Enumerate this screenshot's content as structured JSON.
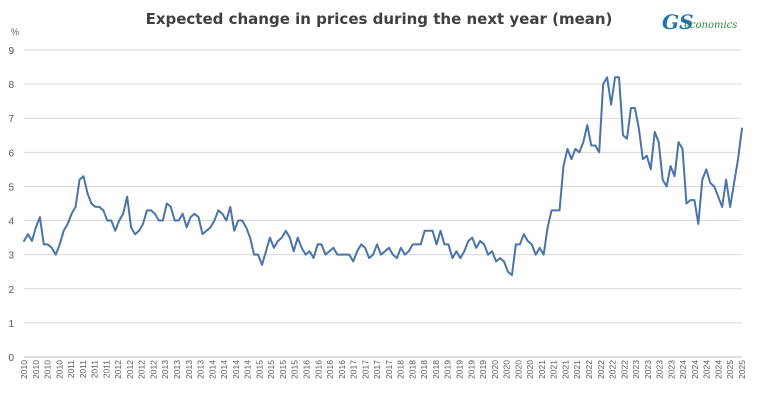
{
  "chart_data": {
    "type": "line",
    "title": "Expected change in prices during the next year (mean)",
    "ylabel": "%",
    "xlabel": "",
    "ylim": [
      0,
      9
    ],
    "yticks": [
      0,
      1,
      2,
      3,
      4,
      5,
      6,
      7,
      8,
      9
    ],
    "xticks": [
      "2010",
      "2010",
      "2010",
      "2010",
      "2011",
      "2011",
      "2011",
      "2011",
      "2012",
      "2012",
      "2012",
      "2012",
      "2013",
      "2013",
      "2013",
      "2013",
      "2014",
      "2014",
      "2014",
      "2014",
      "2015",
      "2015",
      "2015",
      "2015",
      "2016",
      "2016",
      "2016",
      "2016",
      "2017",
      "2017",
      "2017",
      "2017",
      "2018",
      "2018",
      "2018",
      "2018",
      "2019",
      "2019",
      "2019",
      "2019",
      "2020",
      "2020",
      "2020",
      "2020",
      "2021",
      "2021",
      "2021",
      "2021",
      "2022",
      "2022",
      "2022",
      "2022",
      "2023",
      "2023",
      "2023",
      "2023",
      "2024",
      "2024",
      "2024",
      "2024",
      "2025",
      "2025"
    ],
    "grid": "horizontal",
    "color": "#4a74a8",
    "series": [
      {
        "values": [
          3.4,
          3.6,
          3.4,
          3.8,
          4.1,
          3.3,
          3.3,
          3.2,
          3.0,
          3.3,
          3.7,
          3.9,
          4.2,
          4.4,
          5.2,
          5.3,
          4.8,
          4.5,
          4.4,
          4.4,
          4.3,
          4.0,
          4.0,
          3.7,
          4.0,
          4.2,
          4.7,
          3.8,
          3.6,
          3.7,
          3.9,
          4.3,
          4.3,
          4.2,
          4.0,
          4.0,
          4.5,
          4.4,
          4.0,
          4.0,
          4.2,
          3.8,
          4.1,
          4.2,
          4.1,
          3.6,
          3.7,
          3.8,
          4.0,
          4.3,
          4.2,
          4.0,
          4.4,
          3.7,
          4.0,
          4.0,
          3.8,
          3.5,
          3.0,
          3.0,
          2.7,
          3.1,
          3.5,
          3.2,
          3.4,
          3.5,
          3.7,
          3.5,
          3.1,
          3.5,
          3.2,
          3.0,
          3.1,
          2.9,
          3.3,
          3.3,
          3.0,
          3.1,
          3.2,
          3.0,
          3.0,
          3.0,
          3.0,
          2.8,
          3.1,
          3.3,
          3.2,
          2.9,
          3.0,
          3.3,
          3.0,
          3.1,
          3.2,
          3.0,
          2.9,
          3.2,
          3.0,
          3.1,
          3.3,
          3.3,
          3.3,
          3.7,
          3.7,
          3.7,
          3.3,
          3.7,
          3.3,
          3.3,
          2.9,
          3.1,
          2.9,
          3.1,
          3.4,
          3.5,
          3.2,
          3.4,
          3.3,
          3.0,
          3.1,
          2.8,
          2.9,
          2.8,
          2.5,
          2.4,
          3.3,
          3.3,
          3.6,
          3.4,
          3.3,
          3.0,
          3.2,
          3.0,
          3.8,
          4.3,
          4.3,
          4.3,
          5.6,
          6.1,
          5.8,
          6.1,
          6.0,
          6.3,
          6.8,
          6.2,
          6.2,
          6.0,
          8.0,
          8.2,
          7.4,
          8.2,
          8.2,
          6.5,
          6.4,
          7.3,
          7.3,
          6.7,
          5.8,
          5.9,
          5.5,
          6.6,
          6.3,
          5.2,
          5.0,
          5.6,
          5.3,
          6.3,
          6.1,
          4.5,
          4.6,
          4.6,
          3.9,
          5.2,
          5.5,
          5.1,
          5.0,
          4.7,
          4.4,
          5.2,
          4.4,
          5.1,
          5.8,
          6.7
        ]
      }
    ]
  }
}
